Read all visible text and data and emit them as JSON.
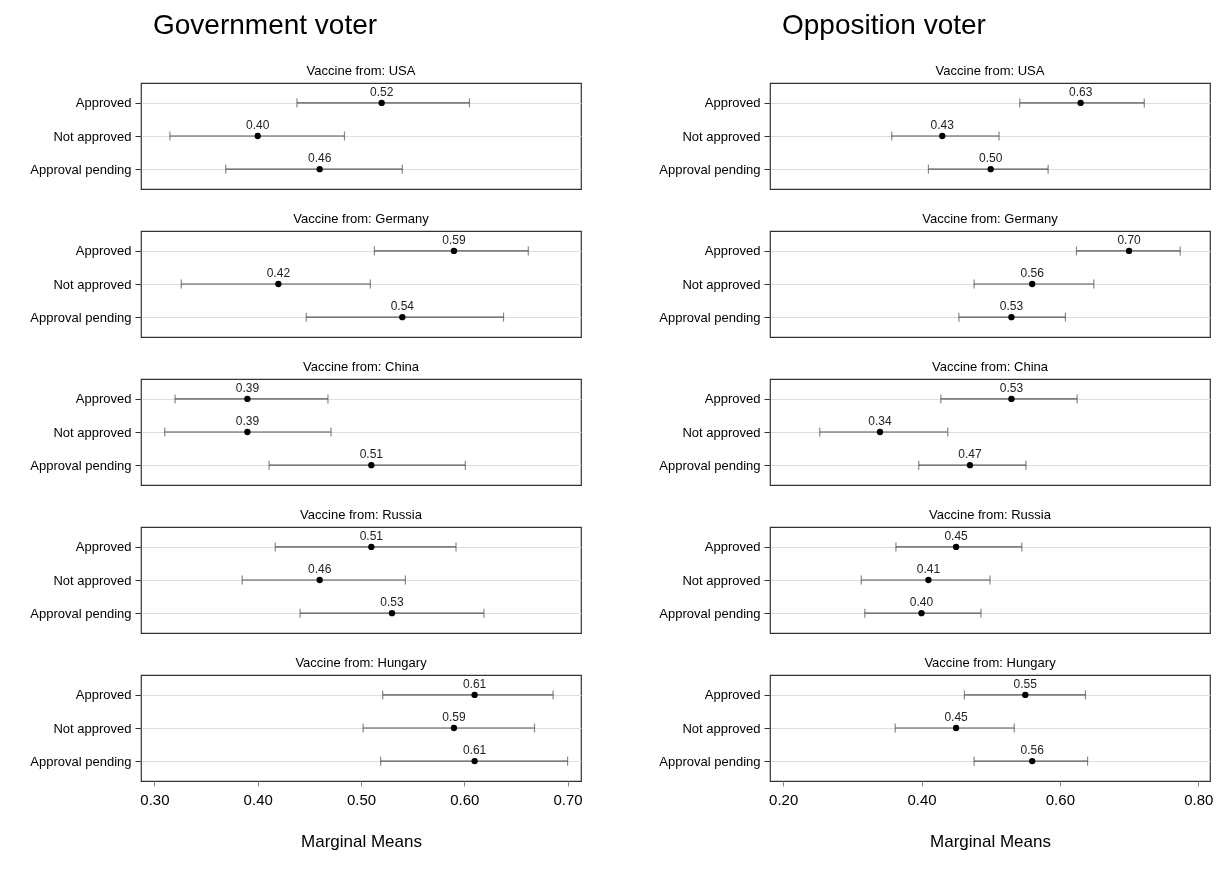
{
  "chart_data": [
    {
      "type": "scatter",
      "title": "Government voter",
      "subtitle": "Vaccine from: USA",
      "orientation": "horizontal",
      "categories": [
        "Approved",
        "Not approved",
        "Approval pending"
      ],
      "values": [
        0.52,
        0.4,
        0.46
      ],
      "errors": [
        [
          0.438,
          0.605
        ],
        [
          0.315,
          0.484
        ],
        [
          0.369,
          0.54
        ]
      ],
      "color": "#000000",
      "value_labels": [
        "0.52",
        "0.40",
        "0.46"
      ],
      "marker": "circle",
      "grid": "y",
      "xlim": [
        0.287,
        0.713
      ],
      "tick_labels": "y"
    },
    {
      "type": "scatter",
      "title": "Vaccine from: Germany",
      "orientation": "horizontal",
      "categories": [
        "Approved",
        "Not approved",
        "Approval pending"
      ],
      "values": [
        0.59,
        0.42,
        0.54
      ],
      "errors": [
        [
          0.513,
          0.662
        ],
        [
          0.326,
          0.509
        ],
        [
          0.447,
          0.638
        ]
      ],
      "color": "#000000",
      "value_labels": [
        "0.59",
        "0.42",
        "0.54"
      ],
      "marker": "circle",
      "grid": "y",
      "xlim": [
        0.287,
        0.713
      ],
      "tick_labels": "y"
    },
    {
      "type": "scatter",
      "title": "Vaccine from: China",
      "orientation": "horizontal",
      "categories": [
        "Approved",
        "Not approved",
        "Approval pending"
      ],
      "values": [
        0.39,
        0.39,
        0.51
      ],
      "errors": [
        [
          0.32,
          0.468
        ],
        [
          0.31,
          0.471
        ],
        [
          0.411,
          0.601
        ]
      ],
      "color": "#000000",
      "value_labels": [
        "0.39",
        "0.39",
        "0.51"
      ],
      "marker": "circle",
      "grid": "y",
      "xlim": [
        0.287,
        0.713
      ],
      "tick_labels": "y"
    },
    {
      "type": "scatter",
      "title": "Vaccine from: Russia",
      "orientation": "horizontal",
      "categories": [
        "Approved",
        "Not approved",
        "Approval pending"
      ],
      "values": [
        0.51,
        0.46,
        0.53
      ],
      "errors": [
        [
          0.417,
          0.592
        ],
        [
          0.385,
          0.543
        ],
        [
          0.441,
          0.619
        ]
      ],
      "color": "#000000",
      "value_labels": [
        "0.51",
        "0.46",
        "0.53"
      ],
      "marker": "circle",
      "grid": "y",
      "xlim": [
        0.287,
        0.713
      ],
      "tick_labels": "y"
    },
    {
      "type": "scatter",
      "title": "Vaccine from: Hungary",
      "xlabel": "Marginal Means",
      "orientation": "horizontal",
      "categories": [
        "Approved",
        "Not approved",
        "Approval pending"
      ],
      "values": [
        0.61,
        0.59,
        0.61
      ],
      "errors": [
        [
          0.521,
          0.686
        ],
        [
          0.502,
          0.668
        ],
        [
          0.519,
          0.7
        ]
      ],
      "color": "#000000",
      "value_labels": [
        "0.61",
        "0.59",
        "0.61"
      ],
      "marker": "circle",
      "grid": "y",
      "xlim": [
        0.287,
        0.713
      ],
      "xticks": [
        {
          "value": 0.3,
          "label": "0.30"
        },
        {
          "value": 0.4,
          "label": "0.40"
        },
        {
          "value": 0.5,
          "label": "0.50"
        },
        {
          "value": 0.6,
          "label": "0.60"
        },
        {
          "value": 0.7,
          "label": "0.70"
        }
      ]
    },
    {
      "type": "scatter",
      "title": "Opposition voter",
      "subtitle": "Vaccine from: USA",
      "orientation": "horizontal",
      "categories": [
        "Approved",
        "Not approved",
        "Approval pending"
      ],
      "values": [
        0.63,
        0.43,
        0.5
      ],
      "errors": [
        [
          0.542,
          0.722
        ],
        [
          0.357,
          0.512
        ],
        [
          0.41,
          0.583
        ]
      ],
      "color": "#000000",
      "value_labels": [
        "0.63",
        "0.43",
        "0.50"
      ],
      "marker": "circle",
      "grid": "y",
      "xlim": [
        0.181,
        0.817
      ],
      "tick_labels": "y"
    },
    {
      "type": "scatter",
      "title": "Vaccine from: Germany",
      "orientation": "horizontal",
      "categories": [
        "Approved",
        "Not approved",
        "Approval pending"
      ],
      "values": [
        0.7,
        0.56,
        0.53
      ],
      "errors": [
        [
          0.624,
          0.774
        ],
        [
          0.476,
          0.649
        ],
        [
          0.454,
          0.608
        ]
      ],
      "color": "#000000",
      "value_labels": [
        "0.70",
        "0.56",
        "0.53"
      ],
      "marker": "circle",
      "grid": "y",
      "xlim": [
        0.181,
        0.817
      ],
      "tick_labels": "y"
    },
    {
      "type": "scatter",
      "title": "Vaccine from: China",
      "orientation": "horizontal",
      "categories": [
        "Approved",
        "Not approved",
        "Approval pending"
      ],
      "values": [
        0.53,
        0.34,
        0.47
      ],
      "errors": [
        [
          0.428,
          0.625
        ],
        [
          0.253,
          0.438
        ],
        [
          0.396,
          0.551
        ]
      ],
      "color": "#000000",
      "value_labels": [
        "0.53",
        "0.34",
        "0.47"
      ],
      "marker": "circle",
      "grid": "y",
      "xlim": [
        0.181,
        0.817
      ],
      "tick_labels": "y"
    },
    {
      "type": "scatter",
      "title": "Vaccine from: Russia",
      "orientation": "horizontal",
      "categories": [
        "Approved",
        "Not approved",
        "Approval pending"
      ],
      "values": [
        0.45,
        0.41,
        0.4
      ],
      "errors": [
        [
          0.363,
          0.545
        ],
        [
          0.313,
          0.499
        ],
        [
          0.318,
          0.486
        ]
      ],
      "color": "#000000",
      "value_labels": [
        "0.45",
        "0.41",
        "0.40"
      ],
      "marker": "circle",
      "grid": "y",
      "xlim": [
        0.181,
        0.817
      ],
      "tick_labels": "y"
    },
    {
      "type": "scatter",
      "title": "Vaccine from: Hungary",
      "xlabel": "Marginal Means",
      "orientation": "horizontal",
      "categories": [
        "Approved",
        "Not approved",
        "Approval pending"
      ],
      "values": [
        0.55,
        0.45,
        0.56
      ],
      "errors": [
        [
          0.462,
          0.637
        ],
        [
          0.362,
          0.534
        ],
        [
          0.476,
          0.64
        ]
      ],
      "color": "#000000",
      "value_labels": [
        "0.55",
        "0.45",
        "0.56"
      ],
      "marker": "circle",
      "grid": "y",
      "xlim": [
        0.181,
        0.817
      ],
      "xticks": [
        {
          "value": 0.2,
          "label": "0.20"
        },
        {
          "value": 0.4,
          "label": "0.40"
        },
        {
          "value": 0.6,
          "label": "0.60"
        },
        {
          "value": 0.8,
          "label": "0.80"
        }
      ]
    }
  ]
}
